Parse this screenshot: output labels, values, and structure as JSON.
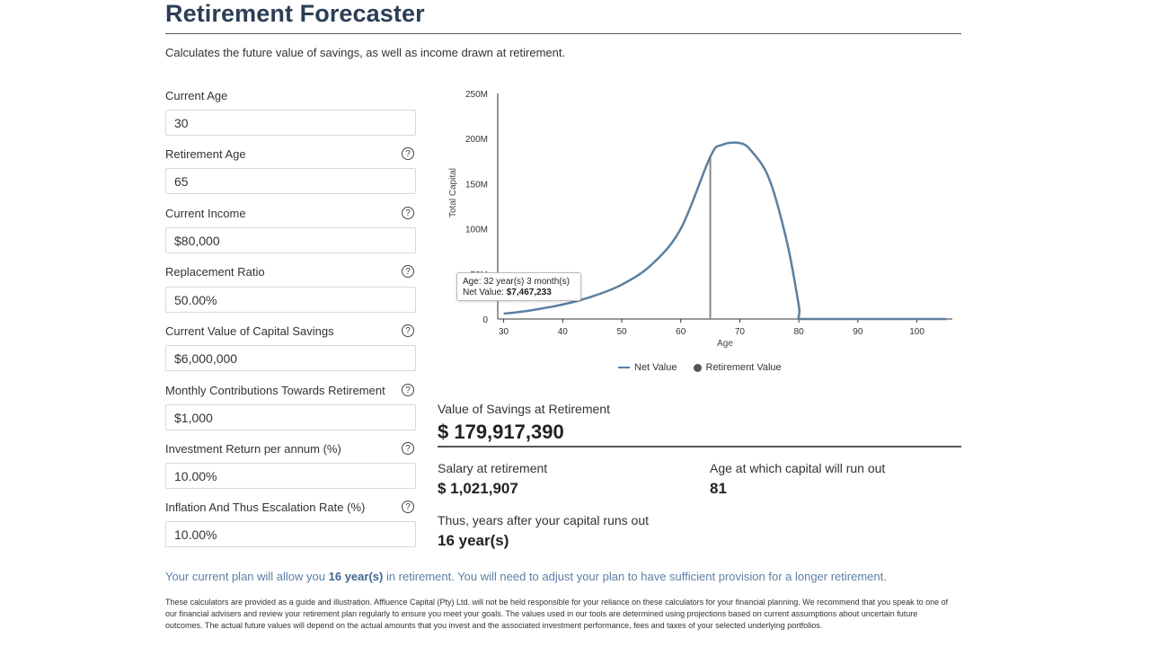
{
  "page": {
    "title": "Retirement Forecaster",
    "subtitle": "Calculates the future value of savings, as well as income drawn at retirement."
  },
  "form": {
    "current_age": {
      "label": "Current Age",
      "value": "30"
    },
    "retirement_age": {
      "label": "Retirement Age",
      "value": "65"
    },
    "current_income": {
      "label": "Current Income",
      "value": "$80,000"
    },
    "replacement_ratio": {
      "label": "Replacement Ratio",
      "value": "50.00%"
    },
    "capital_savings": {
      "label": "Current Value of Capital Savings",
      "value": "$6,000,000"
    },
    "monthly_contributions": {
      "label": "Monthly Contributions Towards Retirement",
      "value": "$1,000"
    },
    "investment_return": {
      "label": "Investment Return per annum (%)",
      "value": "10.00%"
    },
    "inflation_rate": {
      "label": "Inflation And Thus Escalation Rate (%)",
      "value": "10.00%"
    },
    "help_glyph": "?"
  },
  "chart_data": {
    "type": "line",
    "xlabel": "Age",
    "ylabel": "Total Capital",
    "xlim": [
      29,
      106
    ],
    "ylim": [
      0,
      250000000
    ],
    "x_ticks": [
      30,
      40,
      50,
      60,
      70,
      80,
      90,
      100
    ],
    "y_ticks": [
      {
        "value": 0,
        "label": "0"
      },
      {
        "value": 50000000,
        "label": "50M"
      },
      {
        "value": 100000000,
        "label": "100M"
      },
      {
        "value": 150000000,
        "label": "150M"
      },
      {
        "value": 200000000,
        "label": "200M"
      },
      {
        "value": 250000000,
        "label": "250M"
      }
    ],
    "series": [
      {
        "name": "Net Value",
        "color": "#5a7fa0",
        "x": [
          30,
          32.25,
          35,
          40,
          45,
          50,
          55,
          60,
          65,
          67,
          70,
          72,
          75,
          78,
          80,
          80.3,
          85,
          90,
          95,
          100,
          105
        ],
        "values": [
          6000000,
          7467233,
          10000000,
          16000000,
          25000000,
          38000000,
          60000000,
          100000000,
          179917390,
          193000000,
          195000000,
          186000000,
          155000000,
          85000000,
          15000000,
          0,
          0,
          0,
          0,
          0,
          0
        ]
      },
      {
        "name": "Retirement Value",
        "color": "#888888",
        "x": [
          65
        ],
        "values": [
          179917390
        ]
      }
    ],
    "legend": [
      "Net Value",
      "Retirement Value"
    ],
    "tooltip": {
      "line1": "Age: 32 year(s) 3 month(s)",
      "net_label": "Net Value:",
      "net_value": "$7,467,233"
    }
  },
  "results": {
    "savings_label": "Value of Savings at Retirement",
    "savings_value": "$ 179,917,390",
    "salary_label": "Salary at retirement",
    "salary_value": "$ 1,021,907",
    "runout_age_label": "Age at which capital will run out",
    "runout_age_value": "81",
    "years_after_label": "Thus, years after your capital runs out",
    "years_after_value": "16 year(s)"
  },
  "plan_note": {
    "prefix": "Your current plan will allow you ",
    "years": "16 year(s)",
    "suffix": " in retirement. You will need to adjust your plan to have sufficient provision for a longer retirement."
  },
  "disclaimer": "These calculators are provided as a guide and illustration. Affluence Capital (Pty) Ltd. will not be held responsible for your reliance on these calculators for your financial planning. We recommend that you speak to one of our financial advisers and review your retirement plan regularly to ensure you meet your goals. The values used in our tools are determined using projections based on current assumptions about uncertain future outcomes. The actual future values will depend on the actual amounts that you invest and the associated investment performance, fees and taxes of your selected underlying portfolios."
}
